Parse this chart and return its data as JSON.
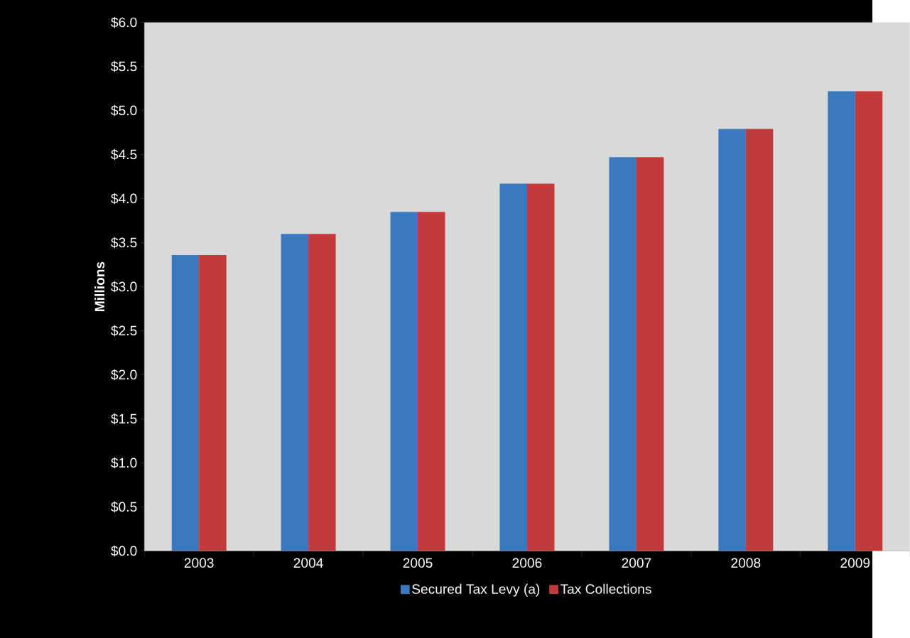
{
  "chart_data": {
    "type": "bar",
    "ylabel": "Millions",
    "categories": [
      "2003",
      "2004",
      "2005",
      "2006",
      "2007",
      "2008",
      "2009"
    ],
    "series": [
      {
        "name": "Secured Tax Levy (a)",
        "color": "#3a78c0",
        "values": [
          3.36,
          3.6,
          3.85,
          4.17,
          4.47,
          4.79,
          5.22
        ]
      },
      {
        "name": "Tax Collections",
        "color": "#c23b3a",
        "values": [
          3.36,
          3.6,
          3.85,
          4.17,
          4.47,
          4.79,
          5.22
        ]
      }
    ],
    "ylim": [
      0,
      6
    ],
    "yticks": [
      {
        "value": 0,
        "label": "$0.0"
      },
      {
        "value": 0.5,
        "label": "$0.5"
      },
      {
        "value": 1,
        "label": "$1.0"
      },
      {
        "value": 1.5,
        "label": "$1.5"
      },
      {
        "value": 2,
        "label": "$2.0"
      },
      {
        "value": 2.5,
        "label": "$2.5"
      },
      {
        "value": 3,
        "label": "$3.0"
      },
      {
        "value": 3.5,
        "label": "$3.5"
      },
      {
        "value": 4,
        "label": "$4.0"
      },
      {
        "value": 4.5,
        "label": "$4.5"
      },
      {
        "value": 5,
        "label": "$5.0"
      },
      {
        "value": 5.5,
        "label": "$5.5"
      },
      {
        "value": 6,
        "label": "$6.0"
      }
    ],
    "grid": false,
    "legend": "bottom"
  }
}
